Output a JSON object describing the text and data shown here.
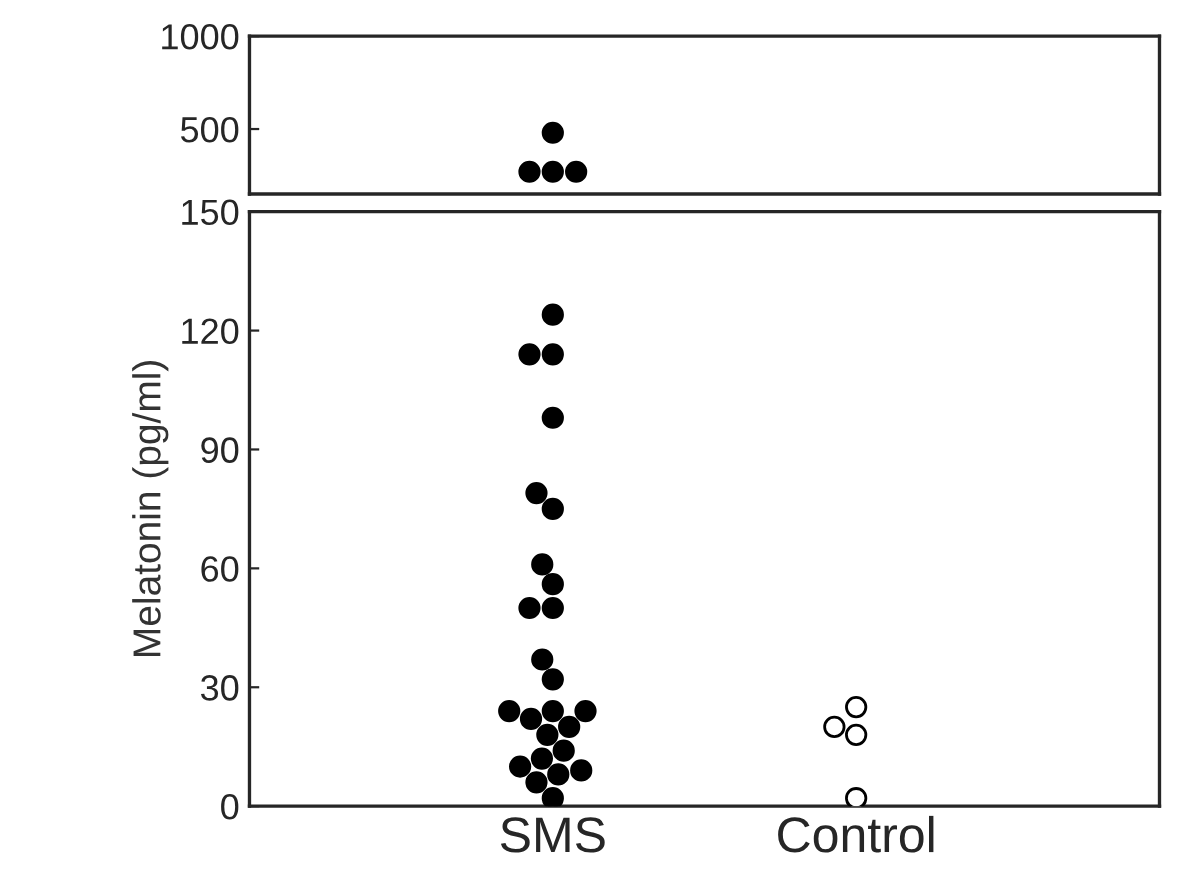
{
  "chart_data": [
    {
      "type": "scatter",
      "categories": [
        "SMS",
        "Control"
      ],
      "ylim": [
        150,
        1000
      ],
      "yticks": [
        500,
        1000
      ],
      "tick_labels": "y",
      "marker": "circle",
      "grid": false,
      "legend": false,
      "series": [
        {
          "x": [
            "SMS",
            "SMS",
            "SMS",
            "SMS"
          ],
          "values": [
            480,
            270,
            270,
            270
          ],
          "color": "#000000"
        }
      ]
    },
    {
      "type": "scatter",
      "categories": [
        "SMS",
        "Control"
      ],
      "ylim": [
        0,
        150
      ],
      "yticks": [
        0,
        30,
        60,
        90,
        120,
        150
      ],
      "ylabel": "Melatonin (pg/ml)",
      "marker": "circle",
      "grid": false,
      "legend": false,
      "series": [
        {
          "x": [
            "SMS",
            "SMS",
            "SMS",
            "SMS",
            "SMS",
            "SMS",
            "SMS",
            "SMS",
            "SMS",
            "SMS",
            "SMS",
            "SMS",
            "SMS",
            "SMS",
            "SMS",
            "SMS",
            "SMS",
            "SMS",
            "SMS",
            "SMS",
            "SMS",
            "SMS",
            "SMS",
            "SMS",
            "SMS"
          ],
          "values": [
            124,
            114,
            114,
            98,
            79,
            75,
            61,
            56,
            50,
            50,
            37,
            32,
            24,
            24,
            24,
            22,
            20,
            18,
            14,
            12,
            10,
            9,
            8,
            6,
            2
          ],
          "color": "#000000"
        },
        {
          "x": [
            "Control",
            "Control",
            "Control",
            "Control"
          ],
          "values": [
            25,
            20,
            18,
            2
          ],
          "color": "#ffffff"
        }
      ]
    }
  ]
}
